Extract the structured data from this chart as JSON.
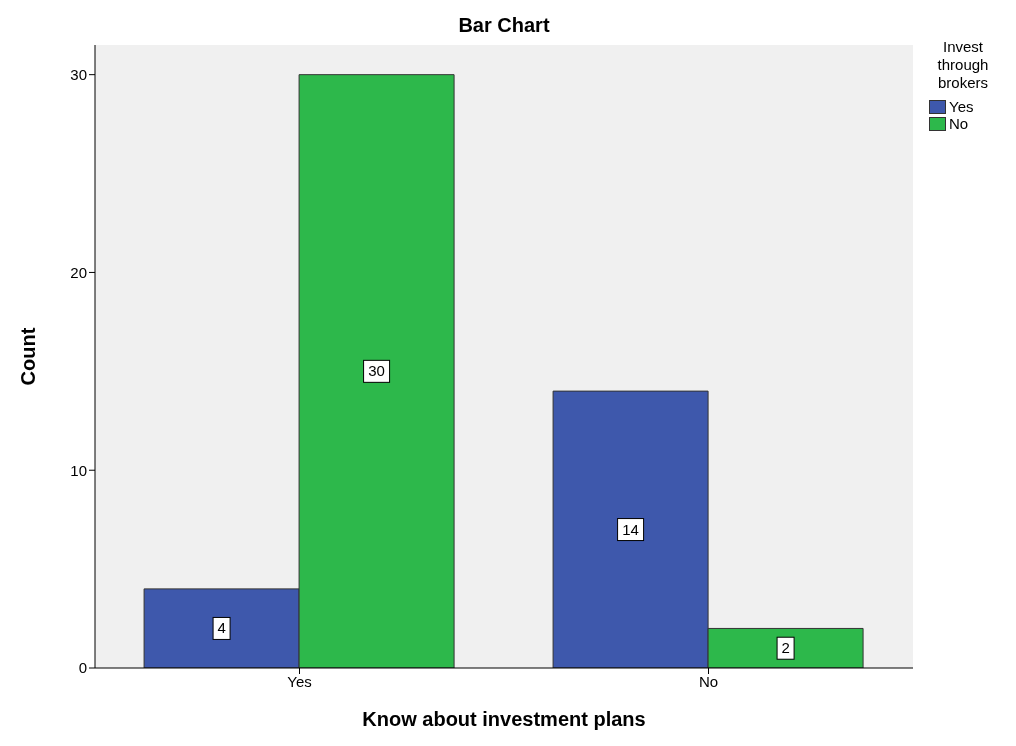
{
  "chart_data": {
    "type": "bar",
    "title": "Bar Chart",
    "xlabel": "Know about investment plans",
    "ylabel": "Count",
    "legend_title": "Invest through brokers",
    "categories": [
      "Yes",
      "No"
    ],
    "series": [
      {
        "name": "Yes",
        "color": "#3e58ac",
        "values": [
          4,
          14
        ]
      },
      {
        "name": "No",
        "color": "#2db84b",
        "values": [
          30,
          2
        ]
      }
    ],
    "ylim": [
      0,
      31.5
    ],
    "yticks": [
      0,
      10,
      20,
      30
    ],
    "grid": false,
    "legend": "top right",
    "data_labels": true
  }
}
